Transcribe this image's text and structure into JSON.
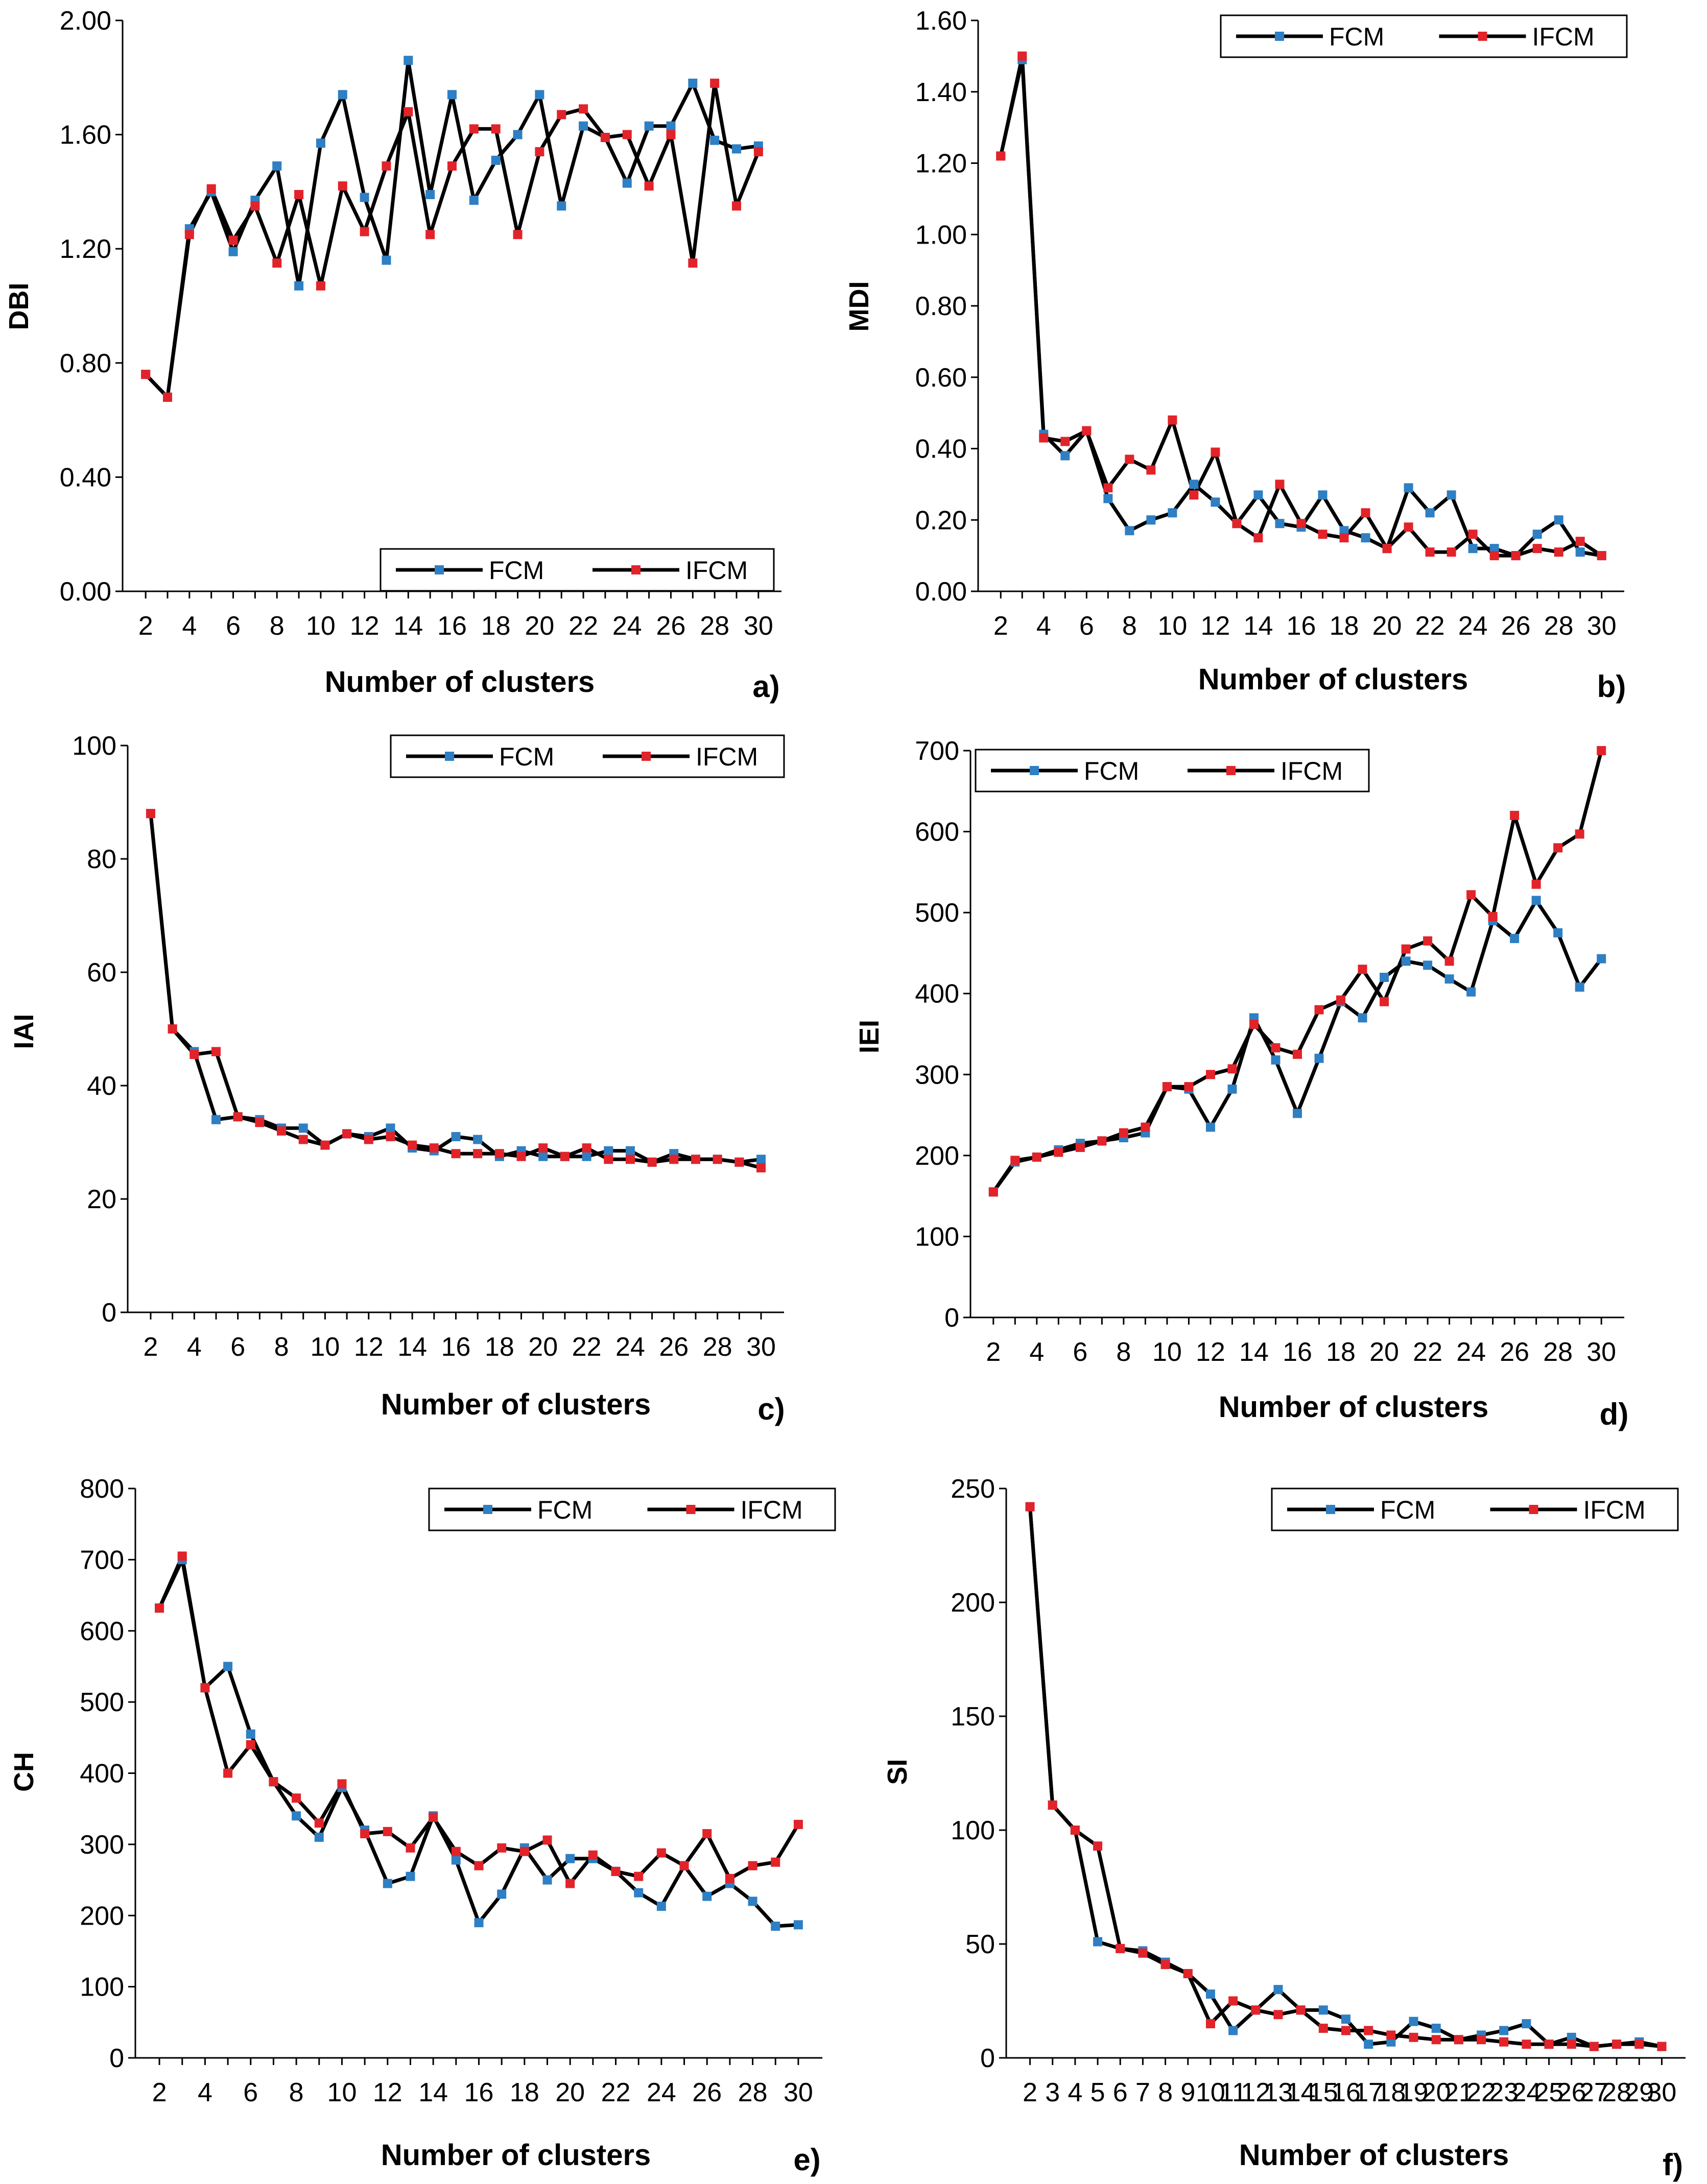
{
  "legend_labels": [
    "FCM",
    "IFCM"
  ],
  "colors": {
    "FCM": "#2e7fc3",
    "IFCM": "#e2232a",
    "line": "#000000"
  },
  "chart_data": [
    {
      "type": "line",
      "panel": "a)",
      "ylabel": "DBI",
      "xlabel": "Number of clusters",
      "ylim": [
        0,
        2.0
      ],
      "y_ticks": [
        "0.00",
        "0.40",
        "0.80",
        "1.20",
        "1.60",
        "2.00"
      ],
      "x_ticks": [
        "2",
        "4",
        "6",
        "8",
        "10",
        "12",
        "14",
        "16",
        "18",
        "20",
        "22",
        "24",
        "26",
        "28",
        "30"
      ],
      "legend_position": "bottom-right",
      "x": [
        2,
        3,
        4,
        5,
        6,
        7,
        8,
        9,
        10,
        11,
        12,
        13,
        14,
        15,
        16,
        17,
        18,
        19,
        20,
        21,
        22,
        23,
        24,
        25,
        26,
        27,
        28,
        29,
        30
      ],
      "series": [
        {
          "name": "FCM",
          "values": [
            0.76,
            0.68,
            1.27,
            1.4,
            1.19,
            1.37,
            1.49,
            1.07,
            1.57,
            1.74,
            1.38,
            1.16,
            1.86,
            1.39,
            1.74,
            1.37,
            1.51,
            1.6,
            1.74,
            1.35,
            1.63,
            1.59,
            1.43,
            1.63,
            1.63,
            1.78,
            1.58,
            1.55,
            1.56
          ]
        },
        {
          "name": "IFCM",
          "values": [
            0.76,
            0.68,
            1.25,
            1.41,
            1.23,
            1.35,
            1.15,
            1.39,
            1.07,
            1.42,
            1.26,
            1.49,
            1.68,
            1.25,
            1.49,
            1.62,
            1.62,
            1.25,
            1.54,
            1.67,
            1.69,
            1.59,
            1.6,
            1.42,
            1.6,
            1.15,
            1.78,
            1.35,
            1.54
          ]
        }
      ]
    },
    {
      "type": "line",
      "panel": "b)",
      "ylabel": "MDI",
      "xlabel": "Number of clusters",
      "ylim": [
        0,
        1.6
      ],
      "y_ticks": [
        "0.00",
        "0.20",
        "0.40",
        "0.60",
        "0.80",
        "1.00",
        "1.20",
        "1.40",
        "1.60"
      ],
      "x_ticks": [
        "2",
        "4",
        "6",
        "8",
        "10",
        "12",
        "14",
        "16",
        "18",
        "20",
        "22",
        "24",
        "26",
        "28",
        "30"
      ],
      "legend_position": "top-right",
      "x": [
        2,
        3,
        4,
        5,
        6,
        7,
        8,
        9,
        10,
        11,
        12,
        13,
        14,
        15,
        16,
        17,
        18,
        19,
        20,
        21,
        22,
        23,
        24,
        25,
        26,
        27,
        28,
        29,
        30
      ],
      "series": [
        {
          "name": "FCM",
          "values": [
            1.22,
            1.49,
            0.44,
            0.38,
            0.45,
            0.26,
            0.17,
            0.2,
            0.22,
            0.3,
            0.25,
            0.19,
            0.27,
            0.19,
            0.18,
            0.27,
            0.17,
            0.15,
            0.12,
            0.29,
            0.22,
            0.27,
            0.12,
            0.12,
            0.1,
            0.16,
            0.2,
            0.11,
            0.1
          ]
        },
        {
          "name": "IFCM",
          "values": [
            1.22,
            1.5,
            0.43,
            0.42,
            0.45,
            0.29,
            0.37,
            0.34,
            0.48,
            0.27,
            0.39,
            0.19,
            0.15,
            0.3,
            0.19,
            0.16,
            0.15,
            0.22,
            0.12,
            0.18,
            0.11,
            0.11,
            0.16,
            0.1,
            0.1,
            0.12,
            0.11,
            0.14,
            0.1
          ]
        }
      ]
    },
    {
      "type": "line",
      "panel": "c)",
      "ylabel": "IAI",
      "xlabel": "Number of clusters",
      "ylim": [
        0,
        100
      ],
      "y_ticks": [
        "0",
        "20",
        "40",
        "60",
        "80",
        "100"
      ],
      "x_ticks": [
        "2",
        "4",
        "6",
        "8",
        "10",
        "12",
        "14",
        "16",
        "18",
        "20",
        "22",
        "24",
        "26",
        "28",
        "30"
      ],
      "legend_position": "top-right",
      "x": [
        2,
        3,
        4,
        5,
        6,
        7,
        8,
        9,
        10,
        11,
        12,
        13,
        14,
        15,
        16,
        17,
        18,
        19,
        20,
        21,
        22,
        23,
        24,
        25,
        26,
        27,
        28,
        29,
        30
      ],
      "series": [
        {
          "name": "FCM",
          "values": [
            88,
            50,
            46,
            34,
            34.5,
            34,
            32.5,
            32.5,
            29.5,
            31.5,
            31,
            32.5,
            29,
            28.5,
            31,
            30.5,
            27.5,
            28.5,
            27.5,
            27.5,
            27.5,
            28.5,
            28.5,
            26.5,
            28,
            27,
            27,
            26.5,
            27
          ]
        },
        {
          "name": "IFCM",
          "values": [
            88,
            50,
            45.5,
            46,
            34.5,
            33.5,
            32,
            30.5,
            29.5,
            31.5,
            30.5,
            31,
            29.5,
            29,
            28,
            28,
            28,
            27.5,
            29,
            27.5,
            29,
            27,
            27,
            26.5,
            27,
            27,
            27,
            26.5,
            25.5
          ]
        }
      ]
    },
    {
      "type": "line",
      "panel": "d)",
      "ylabel": "IEI",
      "xlabel": "Number of clusters",
      "ylim": [
        0,
        700
      ],
      "y_ticks": [
        "0",
        "100",
        "200",
        "300",
        "400",
        "500",
        "600",
        "700"
      ],
      "x_ticks": [
        "2",
        "4",
        "6",
        "8",
        "10",
        "12",
        "14",
        "16",
        "18",
        "20",
        "22",
        "24",
        "26",
        "28",
        "30"
      ],
      "legend_position": "top-left",
      "x": [
        2,
        3,
        4,
        5,
        6,
        7,
        8,
        9,
        10,
        11,
        12,
        13,
        14,
        15,
        16,
        17,
        18,
        19,
        20,
        21,
        22,
        23,
        24,
        25,
        26,
        27,
        28,
        29,
        30
      ],
      "series": [
        {
          "name": "FCM",
          "values": [
            155,
            192,
            198,
            207,
            215,
            218,
            222,
            228,
            285,
            282,
            235,
            282,
            370,
            318,
            252,
            320,
            390,
            370,
            420,
            440,
            435,
            418,
            402,
            490,
            468,
            515,
            475,
            408,
            443
          ]
        },
        {
          "name": "IFCM",
          "values": [
            155,
            194,
            198,
            204,
            210,
            218,
            228,
            235,
            285,
            285,
            300,
            307,
            362,
            333,
            325,
            380,
            392,
            430,
            390,
            455,
            465,
            440,
            522,
            495,
            620,
            535,
            580,
            597,
            700
          ]
        }
      ]
    },
    {
      "type": "line",
      "panel": "e)",
      "ylabel": "CH",
      "xlabel": "Number of clusters",
      "ylim": [
        0,
        800
      ],
      "y_ticks": [
        "0",
        "100",
        "200",
        "300",
        "400",
        "500",
        "600",
        "700",
        "800"
      ],
      "x_ticks": [
        "2",
        "4",
        "6",
        "8",
        "10",
        "12",
        "14",
        "16",
        "18",
        "20",
        "22",
        "24",
        "26",
        "28",
        "30"
      ],
      "legend_position": "top-right",
      "x": [
        2,
        3,
        4,
        5,
        6,
        7,
        8,
        9,
        10,
        11,
        12,
        13,
        14,
        15,
        16,
        17,
        18,
        19,
        20,
        21,
        22,
        23,
        24,
        25,
        26,
        27,
        28,
        29,
        30
      ],
      "series": [
        {
          "name": "FCM",
          "values": [
            632,
            700,
            520,
            550,
            455,
            388,
            340,
            310,
            380,
            320,
            245,
            255,
            340,
            278,
            190,
            230,
            295,
            250,
            280,
            280,
            262,
            232,
            213,
            270,
            227,
            245,
            220,
            185,
            187
          ]
        },
        {
          "name": "IFCM",
          "values": [
            632,
            705,
            520,
            400,
            440,
            388,
            365,
            330,
            385,
            315,
            318,
            295,
            338,
            290,
            270,
            295,
            290,
            306,
            245,
            285,
            262,
            255,
            288,
            270,
            315,
            252,
            270,
            275,
            328
          ]
        }
      ]
    },
    {
      "type": "line",
      "panel": "f)",
      "ylabel": "SI",
      "xlabel": "Number of clusters",
      "ylim": [
        0,
        250
      ],
      "y_ticks": [
        "0",
        "50",
        "100",
        "150",
        "200",
        "250"
      ],
      "x_ticks": [
        "2",
        "3",
        "4",
        "5",
        "6",
        "7",
        "8",
        "9",
        "10",
        "11",
        "12",
        "13",
        "14",
        "15",
        "16",
        "17",
        "18",
        "19",
        "20",
        "21",
        "22",
        "23",
        "24",
        "25",
        "26",
        "27",
        "28",
        "29",
        "30"
      ],
      "legend_position": "top-right",
      "x": [
        2,
        3,
        4,
        5,
        6,
        7,
        8,
        9,
        10,
        11,
        12,
        13,
        14,
        15,
        16,
        17,
        18,
        19,
        20,
        21,
        22,
        23,
        24,
        25,
        26,
        27,
        28,
        29,
        30
      ],
      "series": [
        {
          "name": "FCM",
          "values": [
            242,
            111,
            100,
            51,
            48,
            47,
            42,
            37,
            28,
            12,
            21,
            30,
            21,
            21,
            17,
            6,
            7,
            16,
            13,
            8,
            10,
            12,
            15,
            6,
            9,
            5,
            6,
            7,
            5
          ]
        },
        {
          "name": "IFCM",
          "values": [
            242,
            111,
            100,
            93,
            48,
            46,
            41,
            37,
            15,
            25,
            21,
            19,
            21,
            13,
            12,
            12,
            10,
            9,
            8,
            8,
            8,
            7,
            6,
            6,
            6,
            5,
            6,
            6,
            5
          ]
        }
      ]
    }
  ]
}
